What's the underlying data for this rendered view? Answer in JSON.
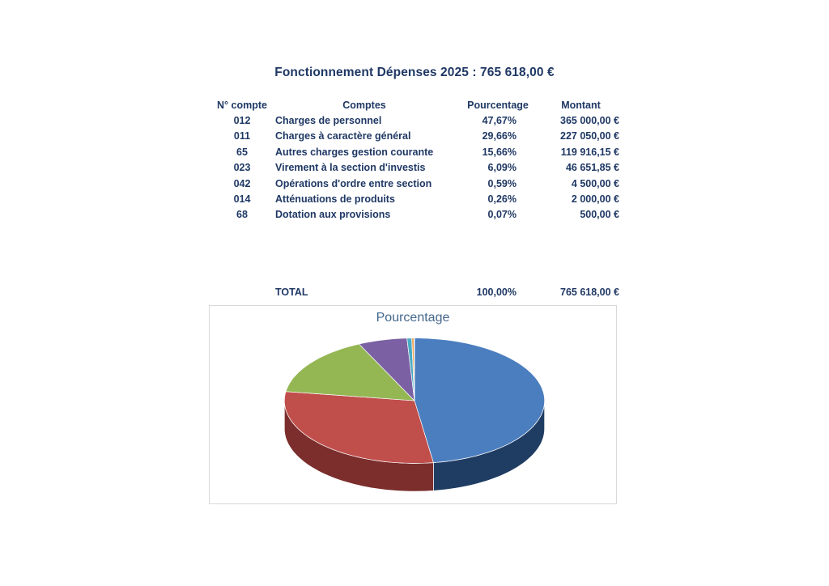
{
  "document": {
    "title": "Fonctionnement Dépenses 2025 : 765 618,00 €",
    "text_color": "#1F3864"
  },
  "table": {
    "headers": {
      "account": "N° compte",
      "label": "Comptes",
      "percent": "Pourcentage",
      "amount": "Montant"
    },
    "rows": [
      {
        "account": "012",
        "label": "Charges de personnel",
        "percent": "47,67%",
        "amount": "365 000,00 €"
      },
      {
        "account": "011",
        "label": "Charges à caractère général",
        "percent": "29,66%",
        "amount": "227 050,00 €"
      },
      {
        "account": "65",
        "label": "Autres charges gestion courante",
        "percent": "15,66%",
        "amount": "119 916,15 €"
      },
      {
        "account": "023",
        "label": "Virement à la section d'investis",
        "percent": "6,09%",
        "amount": "46 651,85 €"
      },
      {
        "account": "042",
        "label": "Opérations d'ordre entre section",
        "percent": "0,59%",
        "amount": "4 500,00 €"
      },
      {
        "account": "014",
        "label": "Atténuations de produits",
        "percent": "0,26%",
        "amount": "2 000,00 €"
      },
      {
        "account": "68",
        "label": "Dotation aux provisions",
        "percent": "0,07%",
        "amount": "500,00 €"
      }
    ],
    "total": {
      "label": "TOTAL",
      "percent": "100,00%",
      "amount": "765 618,00 €"
    }
  },
  "chart_data": {
    "type": "pie",
    "style": "3d",
    "title": "Pourcentage",
    "title_color": "#44678C",
    "border_color": "#D9D9D9",
    "legend": "none",
    "categories": [
      "Charges de personnel",
      "Charges à caractère général",
      "Autres charges gestion courante",
      "Virement à la section d'investis",
      "Opérations d'ordre entre section",
      "Atténuations de produits",
      "Dotation aux provisions"
    ],
    "values": [
      47.67,
      29.66,
      15.66,
      6.09,
      0.59,
      0.26,
      0.07
    ],
    "colors": [
      "#4B7EBE",
      "#C04F4C",
      "#94B754",
      "#7B61A3",
      "#4AABC5",
      "#F0A04A",
      "#2C4D75"
    ],
    "side_colors": [
      "#1F3C63",
      "#7B2E2C",
      "#5C7633",
      "#4C3B67",
      "#2E6B7C",
      "#9A5F2B",
      "#1B3049"
    ]
  }
}
